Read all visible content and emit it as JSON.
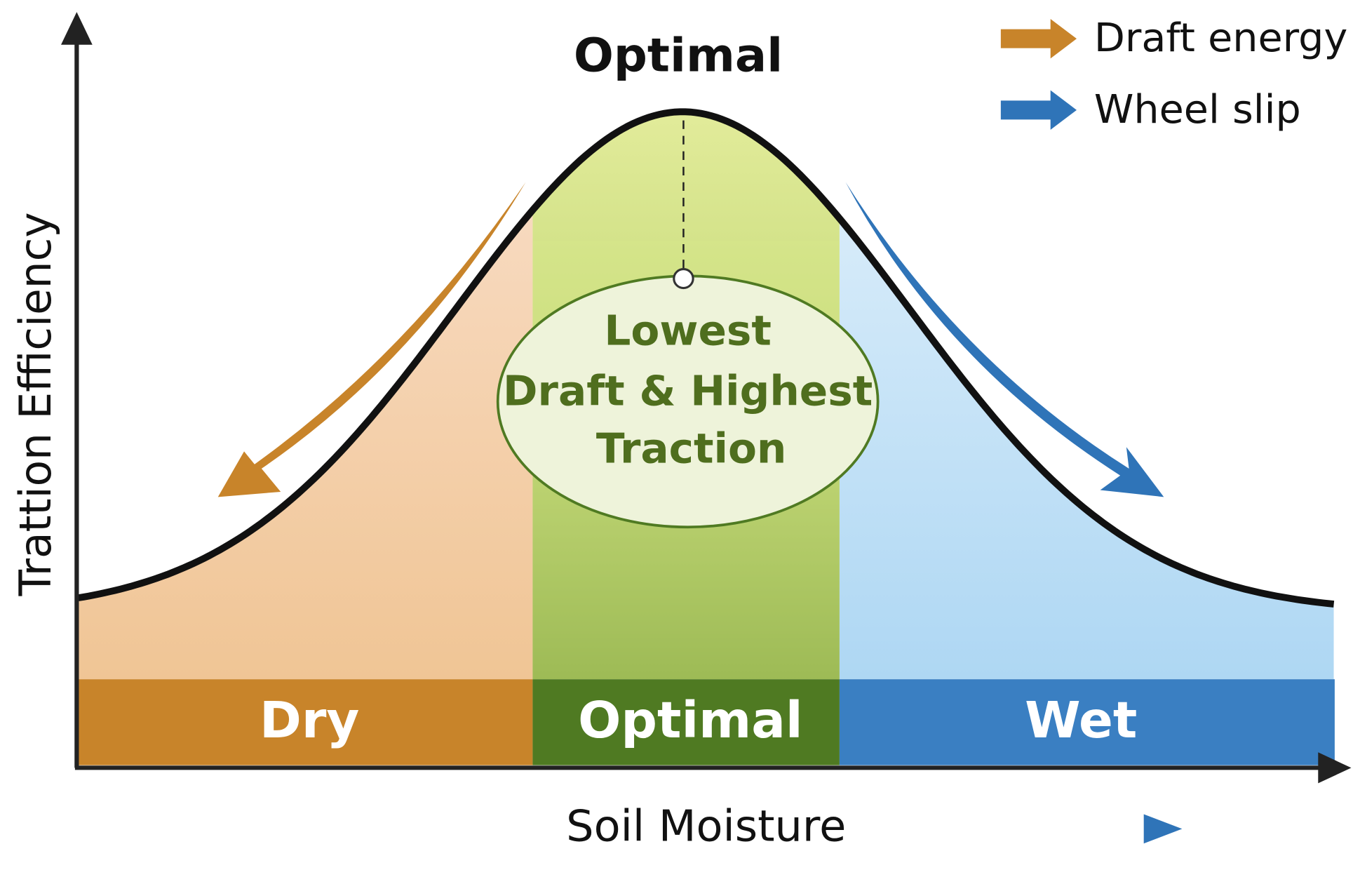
{
  "header": {
    "title": "Optimal"
  },
  "legend": [
    {
      "label": "Draft energy",
      "color": "#c8842a"
    },
    {
      "label": "Wheel slip",
      "color": "#2f74b8"
    }
  ],
  "axes": {
    "y_label": "Trattion Efficiency",
    "x_label": "Soil Moisture"
  },
  "callout": {
    "lines": [
      "Lowest",
      "Draft & Highest",
      "Traction"
    ]
  },
  "zones": [
    {
      "label": "Dry",
      "color": "#c8842a"
    },
    {
      "label": "Optimal",
      "color": "#4f7a22"
    },
    {
      "label": "Wet",
      "color": "#3a7fc2"
    }
  ]
}
